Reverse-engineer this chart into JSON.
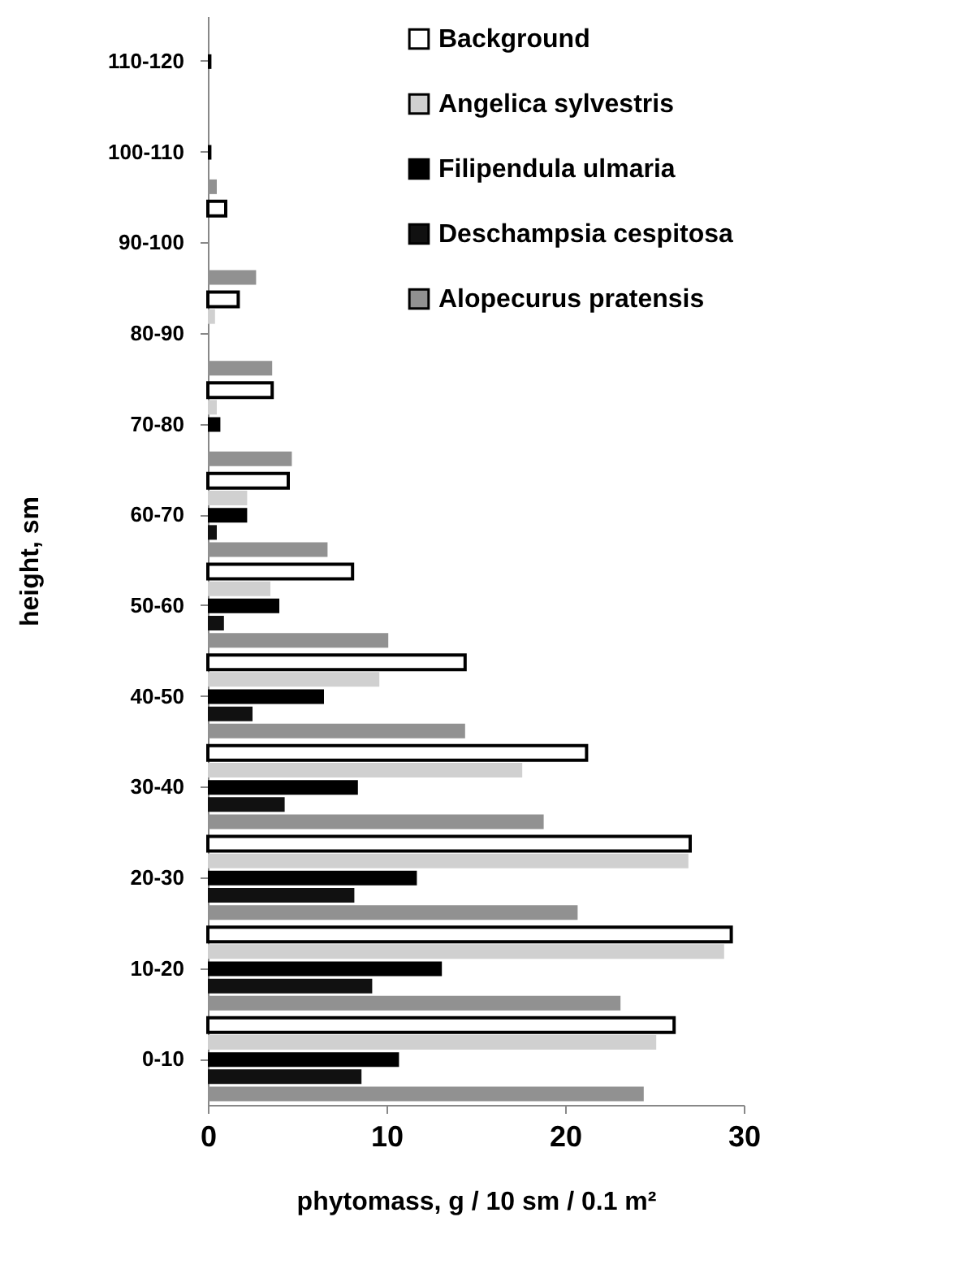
{
  "chart_data": {
    "type": "bar",
    "orientation": "horizontal",
    "xlabel": "phytomass, g / 10 sm / 0.1 m²",
    "ylabel": "height, sm",
    "categories": [
      "110-120",
      "100-110",
      "90-100",
      "80-90",
      "70-80",
      "60-70",
      "50-60",
      "40-50",
      "30-40",
      "20-30",
      "10-20",
      "0-10"
    ],
    "series": [
      {
        "name": "Background",
        "color": "#ffffff",
        "values": [
          null,
          null,
          1.0,
          1.7,
          3.6,
          4.5,
          8.1,
          14.4,
          21.2,
          27.0,
          29.3,
          26.1
        ]
      },
      {
        "name": "Angelica sylvestris",
        "color": "#d0d0d0",
        "values": [
          null,
          null,
          null,
          0.4,
          0.5,
          2.2,
          3.5,
          9.6,
          17.6,
          26.9,
          28.9,
          25.1
        ]
      },
      {
        "name": "Filipendula ulmaria",
        "color": "#000000",
        "values": [
          0.2,
          0.2,
          null,
          null,
          0.7,
          2.2,
          4.0,
          6.5,
          8.4,
          11.7,
          13.1,
          10.7
        ]
      },
      {
        "name": "Deschampsia cespitosa",
        "color": "#111111",
        "values": [
          null,
          null,
          null,
          null,
          null,
          0.5,
          0.9,
          2.5,
          4.3,
          8.2,
          9.2,
          8.6
        ]
      },
      {
        "name": "Alopecurus pratensis",
        "color": "#919191",
        "values": [
          null,
          0.5,
          2.7,
          3.6,
          4.7,
          6.7,
          10.1,
          14.4,
          18.8,
          20.7,
          23.1,
          24.4
        ]
      }
    ],
    "xlim": [
      0,
      30
    ],
    "xticks": [
      0,
      10,
      20,
      30
    ],
    "grid": false,
    "legend": "top right"
  }
}
